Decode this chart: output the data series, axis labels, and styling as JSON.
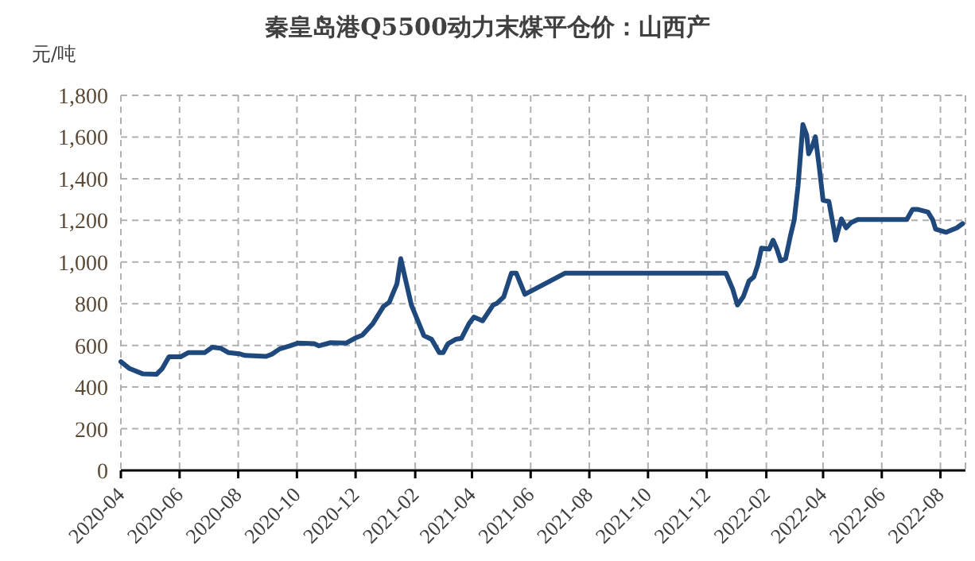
{
  "chart_data": {
    "type": "line",
    "title": "秦皇岛港Q5500动力末煤平仓价：山西产",
    "ylabel": "元/吨",
    "x": [
      "2020-04-01",
      "2020-04-10",
      "2020-04-24",
      "2020-05-08",
      "2020-05-14",
      "2020-05-21",
      "2020-06-02",
      "2020-06-10",
      "2020-06-27",
      "2020-07-05",
      "2020-07-14",
      "2020-07-22",
      "2020-08-02",
      "2020-08-08",
      "2020-08-30",
      "2020-09-05",
      "2020-09-13",
      "2020-09-24",
      "2020-10-02",
      "2020-10-19",
      "2020-10-24",
      "2020-11-05",
      "2020-11-21",
      "2020-11-30",
      "2020-12-08",
      "2020-12-19",
      "2020-12-30",
      "2021-01-05",
      "2021-01-13",
      "2021-01-17",
      "2021-01-21",
      "2021-01-28",
      "2021-02-10",
      "2021-02-18",
      "2021-02-26",
      "2021-03-02",
      "2021-03-07",
      "2021-03-15",
      "2021-03-21",
      "2021-03-29",
      "2021-04-03",
      "2021-04-12",
      "2021-04-23",
      "2021-04-27",
      "2021-05-04",
      "2021-05-12",
      "2021-05-17",
      "2021-05-26",
      "2021-07-07",
      "2021-12-21",
      "2021-12-28",
      "2022-01-02",
      "2022-01-08",
      "2022-01-14",
      "2022-01-19",
      "2022-01-23",
      "2022-01-27",
      "2022-02-04",
      "2022-02-08",
      "2022-02-12",
      "2022-02-16",
      "2022-02-21",
      "2022-02-26",
      "2022-03-02",
      "2022-03-06",
      "2022-03-11",
      "2022-03-15",
      "2022-03-17",
      "2022-03-21",
      "2022-03-24",
      "2022-03-28",
      "2022-04-01",
      "2022-04-07",
      "2022-04-12",
      "2022-04-14",
      "2022-04-20",
      "2022-04-25",
      "2022-04-30",
      "2022-05-07",
      "2022-06-27",
      "2022-07-03",
      "2022-07-08",
      "2022-07-19",
      "2022-07-24",
      "2022-07-27",
      "2022-08-07",
      "2022-08-18",
      "2022-08-24"
    ],
    "series": [
      {
        "color": "#1f497d",
        "values": [
          522,
          489,
          463,
          461,
          489,
          545,
          545,
          565,
          565,
          591,
          586,
          565,
          560,
          552,
          547,
          558,
          583,
          598,
          611,
          608,
          598,
          613,
          611,
          634,
          649,
          705,
          787,
          807,
          896,
          1016,
          934,
          794,
          647,
          629,
          565,
          565,
          608,
          629,
          634,
          705,
          736,
          718,
          794,
          802,
          833,
          947,
          947,
          845,
          947,
          947,
          871,
          794,
          833,
          909,
          929,
          985,
          1067,
          1062,
          1105,
          1062,
          1006,
          1016,
          1125,
          1202,
          1367,
          1660,
          1609,
          1520,
          1558,
          1601,
          1456,
          1296,
          1291,
          1164,
          1105,
          1207,
          1164,
          1189,
          1204,
          1204,
          1253,
          1253,
          1240,
          1202,
          1158,
          1143,
          1164,
          1184
        ]
      }
    ],
    "xlim": [
      "2020-04-01",
      "2022-08-27"
    ],
    "xticks": [
      "2020-04",
      "2020-06",
      "2020-08",
      "2020-10",
      "2020-12",
      "2021-02",
      "2021-04",
      "2021-06",
      "2021-08",
      "2021-10",
      "2021-12",
      "2022-02",
      "2022-04",
      "2022-06",
      "2022-08"
    ],
    "ylim": [
      0,
      1800
    ],
    "yticks": [
      0,
      200,
      400,
      600,
      800,
      {
        "value": 1000,
        "label": "1,000"
      },
      {
        "value": 1200,
        "label": "1,200"
      },
      {
        "value": 1400,
        "label": "1,400"
      },
      {
        "value": 1600,
        "label": "1,600"
      },
      {
        "value": 1800,
        "label": "1,800"
      }
    ],
    "grid": true,
    "marker": "none",
    "line_style": "solid"
  }
}
